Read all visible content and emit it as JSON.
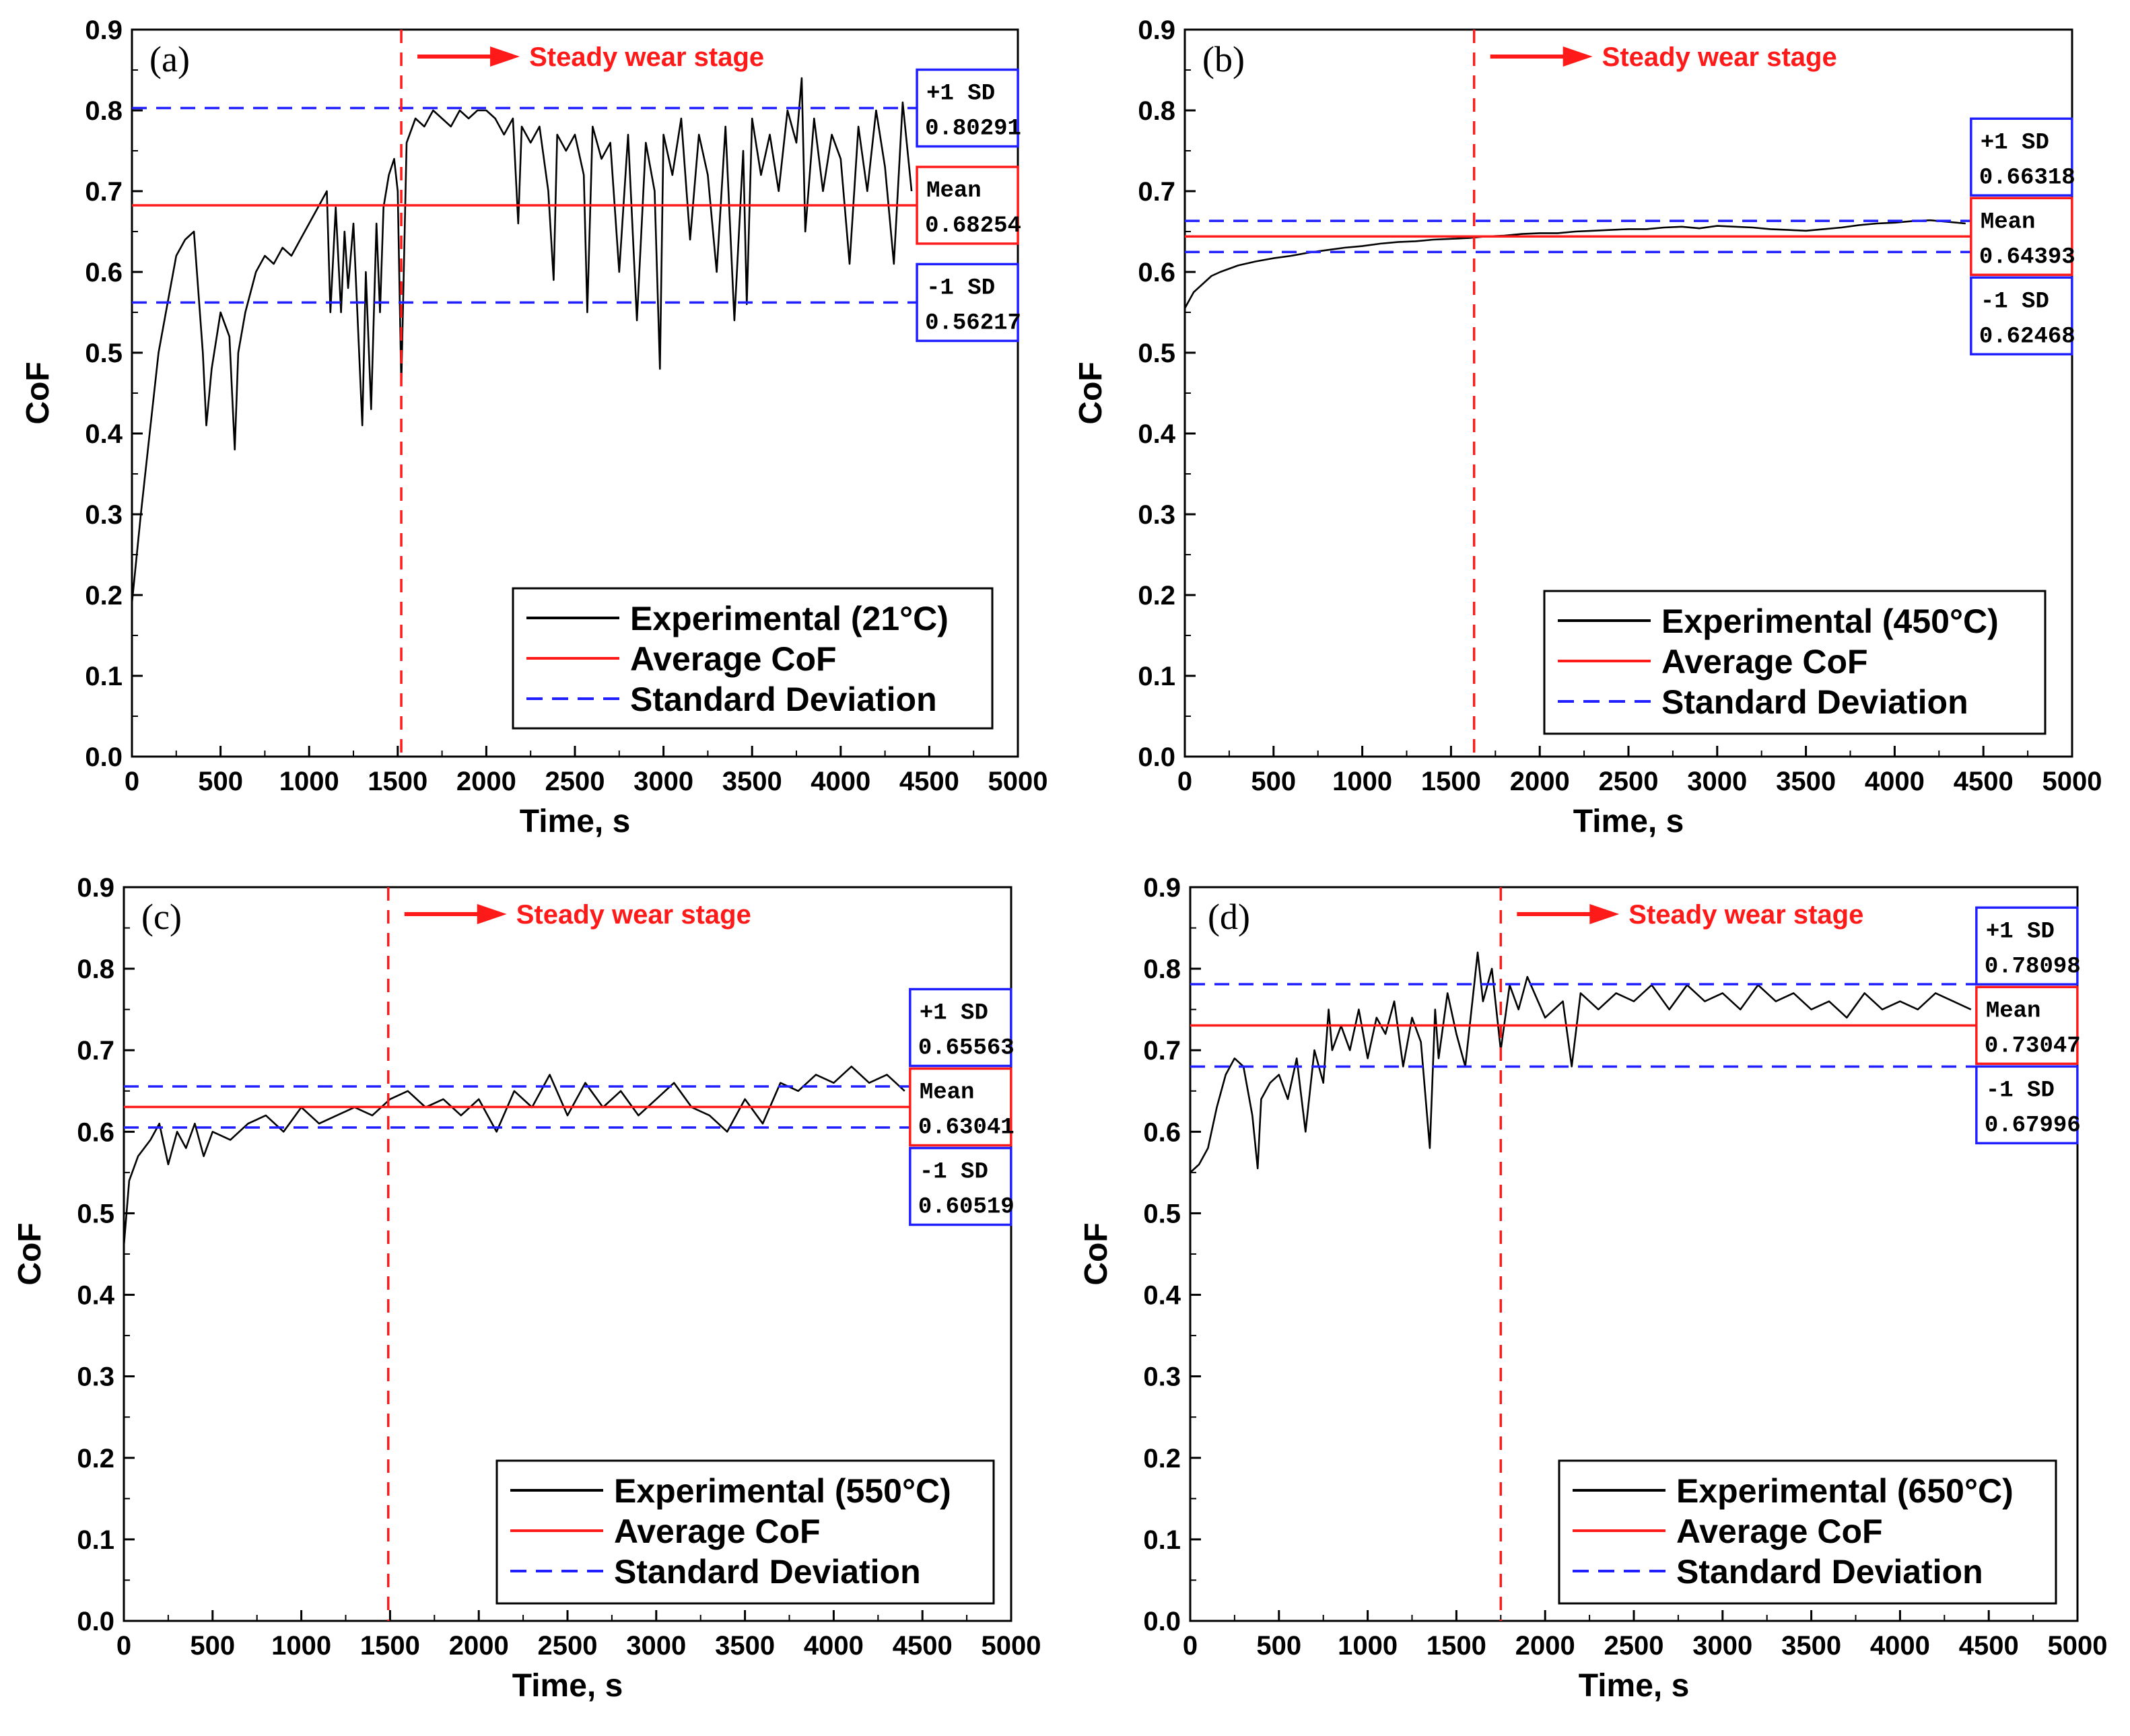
{
  "colors": {
    "experimental": "#000000",
    "mean": "#ff1a1a",
    "sd": "#1f1fff",
    "stage_line": "#ff1a1a",
    "mean_box": "#ff1a1a",
    "sd_box": "#1f1fff"
  },
  "chart_data": [
    {
      "type": "line",
      "panel_label": "(a)",
      "xlabel": "Time, s",
      "ylabel": "CoF",
      "xlim": [
        0,
        5000
      ],
      "ylim": [
        0,
        0.9
      ],
      "xticks": [
        "0",
        "500",
        "1000",
        "1500",
        "2000",
        "2500",
        "3000",
        "3500",
        "4000",
        "4500",
        "5000"
      ],
      "yticks": [
        "0.0",
        "0.1",
        "0.2",
        "0.3",
        "0.4",
        "0.5",
        "0.6",
        "0.7",
        "0.8",
        "0.9"
      ],
      "stage_time": 1520,
      "stage_text": "Steady wear stage",
      "mean": 0.68254,
      "plus_sd": 0.80291,
      "minus_sd": 0.56217,
      "mean_title": "Mean",
      "mean_value": "0.68254",
      "plus_sd_title": "+1 SD",
      "plus_sd_value": "0.80291",
      "minus_sd_title": "-1 SD",
      "minus_sd_value": "0.56217",
      "legend": [
        "Experimental (21°C)",
        "Average CoF",
        "Standard Deviation"
      ],
      "series": [
        {
          "name": "Experimental (21°C)",
          "x": [
            0,
            50,
            100,
            150,
            200,
            250,
            300,
            350,
            400,
            420,
            450,
            500,
            550,
            580,
            600,
            640,
            700,
            750,
            800,
            850,
            900,
            950,
            1000,
            1050,
            1100,
            1120,
            1150,
            1180,
            1200,
            1220,
            1250,
            1270,
            1300,
            1320,
            1350,
            1380,
            1400,
            1420,
            1450,
            1480,
            1500,
            1520,
            1550,
            1600,
            1650,
            1700,
            1750,
            1800,
            1850,
            1900,
            1950,
            2000,
            2050,
            2100,
            2150,
            2180,
            2200,
            2250,
            2300,
            2350,
            2380,
            2400,
            2450,
            2500,
            2550,
            2570,
            2600,
            2650,
            2700,
            2750,
            2800,
            2850,
            2900,
            2950,
            2980,
            3000,
            3050,
            3100,
            3150,
            3200,
            3250,
            3300,
            3350,
            3400,
            3450,
            3470,
            3500,
            3550,
            3600,
            3650,
            3700,
            3750,
            3780,
            3800,
            3850,
            3900,
            3950,
            4000,
            4050,
            4100,
            4150,
            4200,
            4250,
            4300,
            4350,
            4400
          ],
          "y": [
            0.19,
            0.3,
            0.4,
            0.5,
            0.56,
            0.62,
            0.64,
            0.65,
            0.5,
            0.41,
            0.48,
            0.55,
            0.52,
            0.38,
            0.5,
            0.55,
            0.6,
            0.62,
            0.61,
            0.63,
            0.62,
            0.64,
            0.66,
            0.68,
            0.7,
            0.55,
            0.68,
            0.55,
            0.65,
            0.58,
            0.66,
            0.56,
            0.41,
            0.6,
            0.43,
            0.66,
            0.55,
            0.68,
            0.72,
            0.74,
            0.7,
            0.46,
            0.76,
            0.79,
            0.78,
            0.8,
            0.79,
            0.78,
            0.8,
            0.79,
            0.8,
            0.8,
            0.79,
            0.77,
            0.79,
            0.66,
            0.78,
            0.76,
            0.78,
            0.7,
            0.59,
            0.77,
            0.75,
            0.77,
            0.72,
            0.55,
            0.78,
            0.74,
            0.76,
            0.6,
            0.77,
            0.54,
            0.76,
            0.7,
            0.48,
            0.77,
            0.72,
            0.79,
            0.64,
            0.77,
            0.72,
            0.6,
            0.78,
            0.54,
            0.75,
            0.56,
            0.79,
            0.72,
            0.77,
            0.7,
            0.8,
            0.76,
            0.84,
            0.65,
            0.79,
            0.7,
            0.77,
            0.74,
            0.61,
            0.78,
            0.7,
            0.8,
            0.73,
            0.61,
            0.81,
            0.7
          ]
        }
      ]
    },
    {
      "type": "line",
      "panel_label": "(b)",
      "xlabel": "Time, s",
      "ylabel": "CoF",
      "xlim": [
        0,
        5000
      ],
      "ylim": [
        0,
        0.9
      ],
      "xticks": [
        "0",
        "500",
        "1000",
        "1500",
        "2000",
        "2500",
        "3000",
        "3500",
        "4000",
        "4500",
        "5000"
      ],
      "yticks": [
        "0.0",
        "0.1",
        "0.2",
        "0.3",
        "0.4",
        "0.5",
        "0.6",
        "0.7",
        "0.8",
        "0.9"
      ],
      "stage_time": 1630,
      "stage_text": "Steady wear stage",
      "mean": 0.64393,
      "plus_sd": 0.66318,
      "minus_sd": 0.62468,
      "mean_title": "Mean",
      "mean_value": "0.64393",
      "plus_sd_title": "+1 SD",
      "plus_sd_value": "0.66318",
      "minus_sd_title": "-1 SD",
      "minus_sd_value": "0.62468",
      "legend": [
        "Experimental (450°C)",
        "Average CoF",
        "Standard Deviation"
      ],
      "series": [
        {
          "name": "Experimental (450°C)",
          "x": [
            0,
            50,
            100,
            150,
            200,
            300,
            400,
            500,
            600,
            700,
            800,
            900,
            1000,
            1100,
            1200,
            1300,
            1400,
            1500,
            1600,
            1700,
            1800,
            1900,
            2000,
            2100,
            2200,
            2300,
            2400,
            2500,
            2600,
            2700,
            2800,
            2900,
            3000,
            3100,
            3200,
            3300,
            3400,
            3500,
            3600,
            3700,
            3800,
            3900,
            4000,
            4100,
            4200,
            4300,
            4400
          ],
          "y": [
            0.555,
            0.575,
            0.585,
            0.595,
            0.6,
            0.608,
            0.613,
            0.617,
            0.62,
            0.624,
            0.627,
            0.63,
            0.632,
            0.635,
            0.637,
            0.638,
            0.64,
            0.641,
            0.642,
            0.644,
            0.645,
            0.647,
            0.648,
            0.648,
            0.65,
            0.651,
            0.652,
            0.653,
            0.653,
            0.655,
            0.656,
            0.654,
            0.657,
            0.656,
            0.655,
            0.653,
            0.652,
            0.651,
            0.653,
            0.655,
            0.658,
            0.66,
            0.661,
            0.663,
            0.664,
            0.662,
            0.66
          ]
        }
      ]
    },
    {
      "type": "line",
      "panel_label": "(c)",
      "xlabel": "Time, s",
      "ylabel": "CoF",
      "xlim": [
        0,
        5000
      ],
      "ylim": [
        0,
        0.9
      ],
      "xticks": [
        "0",
        "500",
        "1000",
        "1500",
        "2000",
        "2500",
        "3000",
        "3500",
        "4000",
        "4500",
        "5000"
      ],
      "yticks": [
        "0.0",
        "0.1",
        "0.2",
        "0.3",
        "0.4",
        "0.5",
        "0.6",
        "0.7",
        "0.8",
        "0.9"
      ],
      "stage_time": 1490,
      "stage_text": "Steady wear stage",
      "mean": 0.63041,
      "plus_sd": 0.65563,
      "minus_sd": 0.60519,
      "mean_title": "Mean",
      "mean_value": "0.63041",
      "plus_sd_title": "+1 SD",
      "plus_sd_value": "0.65563",
      "minus_sd_title": "-1 SD",
      "minus_sd_value": "0.60519",
      "legend": [
        "Experimental (550°C)",
        "Average CoF",
        "Standard Deviation"
      ],
      "series": [
        {
          "name": "Experimental (550°C)",
          "x": [
            0,
            30,
            80,
            150,
            200,
            250,
            300,
            350,
            400,
            450,
            500,
            600,
            700,
            800,
            900,
            1000,
            1100,
            1200,
            1300,
            1400,
            1500,
            1600,
            1700,
            1800,
            1900,
            2000,
            2100,
            2200,
            2300,
            2400,
            2500,
            2600,
            2700,
            2800,
            2900,
            3000,
            3100,
            3200,
            3300,
            3400,
            3500,
            3600,
            3700,
            3800,
            3900,
            4000,
            4100,
            4200,
            4300,
            4400
          ],
          "y": [
            0.46,
            0.54,
            0.57,
            0.59,
            0.61,
            0.56,
            0.6,
            0.58,
            0.61,
            0.57,
            0.6,
            0.59,
            0.61,
            0.62,
            0.6,
            0.63,
            0.61,
            0.62,
            0.63,
            0.62,
            0.64,
            0.65,
            0.63,
            0.64,
            0.62,
            0.64,
            0.6,
            0.65,
            0.63,
            0.67,
            0.62,
            0.66,
            0.63,
            0.65,
            0.62,
            0.64,
            0.66,
            0.63,
            0.62,
            0.6,
            0.64,
            0.61,
            0.66,
            0.65,
            0.67,
            0.66,
            0.68,
            0.66,
            0.67,
            0.65
          ]
        }
      ]
    },
    {
      "type": "line",
      "panel_label": "(d)",
      "xlabel": "Time, s",
      "ylabel": "CoF",
      "xlim": [
        0,
        5000
      ],
      "ylim": [
        0,
        0.9
      ],
      "xticks": [
        "0",
        "500",
        "1000",
        "1500",
        "2000",
        "2500",
        "3000",
        "3500",
        "4000",
        "4500",
        "5000"
      ],
      "yticks": [
        "0.0",
        "0.1",
        "0.2",
        "0.3",
        "0.4",
        "0.5",
        "0.6",
        "0.7",
        "0.8",
        "0.9"
      ],
      "stage_time": 1750,
      "stage_text": "Steady wear stage",
      "mean": 0.73047,
      "plus_sd": 0.78098,
      "minus_sd": 0.67996,
      "mean_title": "Mean",
      "mean_value": "0.73047",
      "plus_sd_title": "+1 SD",
      "plus_sd_value": "0.78098",
      "minus_sd_title": "-1 SD",
      "minus_sd_value": "0.67996",
      "legend": [
        "Experimental (650°C)",
        "Average CoF",
        "Standard Deviation"
      ],
      "series": [
        {
          "name": "Experimental (650°C)",
          "x": [
            0,
            50,
            100,
            150,
            200,
            250,
            300,
            350,
            380,
            400,
            450,
            500,
            550,
            600,
            650,
            700,
            750,
            780,
            800,
            850,
            900,
            950,
            1000,
            1050,
            1100,
            1150,
            1200,
            1250,
            1300,
            1350,
            1380,
            1400,
            1450,
            1500,
            1550,
            1600,
            1620,
            1650,
            1700,
            1750,
            1800,
            1850,
            1900,
            2000,
            2100,
            2150,
            2200,
            2300,
            2400,
            2500,
            2600,
            2700,
            2800,
            2900,
            3000,
            3100,
            3200,
            3300,
            3400,
            3500,
            3600,
            3700,
            3800,
            3900,
            4000,
            4100,
            4200,
            4300,
            4400
          ],
          "y": [
            0.55,
            0.56,
            0.58,
            0.63,
            0.67,
            0.69,
            0.68,
            0.62,
            0.555,
            0.64,
            0.66,
            0.67,
            0.64,
            0.69,
            0.6,
            0.7,
            0.66,
            0.75,
            0.7,
            0.73,
            0.7,
            0.75,
            0.69,
            0.74,
            0.72,
            0.76,
            0.68,
            0.74,
            0.71,
            0.58,
            0.75,
            0.69,
            0.77,
            0.72,
            0.68,
            0.78,
            0.82,
            0.76,
            0.8,
            0.7,
            0.78,
            0.75,
            0.79,
            0.74,
            0.76,
            0.68,
            0.77,
            0.75,
            0.77,
            0.76,
            0.78,
            0.75,
            0.78,
            0.76,
            0.77,
            0.75,
            0.78,
            0.76,
            0.77,
            0.75,
            0.76,
            0.74,
            0.77,
            0.75,
            0.76,
            0.75,
            0.77,
            0.76,
            0.75
          ]
        }
      ]
    }
  ]
}
